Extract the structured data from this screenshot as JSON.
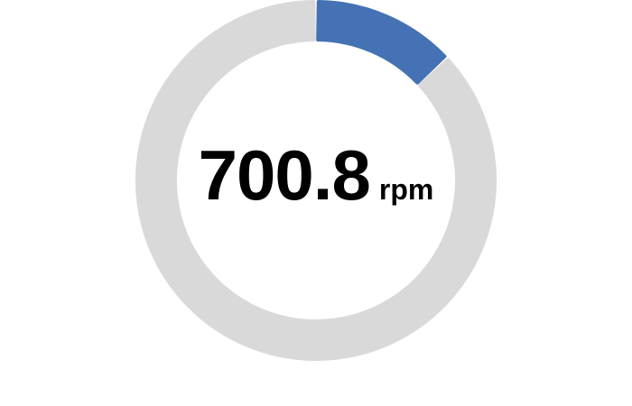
{
  "gauge": {
    "value": "700.8",
    "unit": "rpm",
    "fill_fraction": 0.13,
    "colors": {
      "track": "#d9d9d9",
      "fill": "#4472b4",
      "text": "#000000",
      "background": "#ffffff"
    }
  }
}
